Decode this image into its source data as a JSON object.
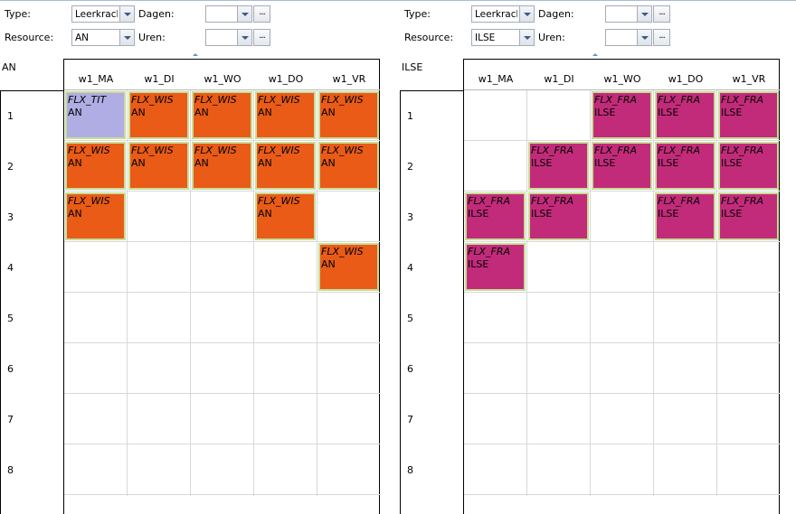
{
  "days": [
    "w1_MA",
    "w1_DI",
    "w1_WO",
    "w1_DO",
    "w1_VR"
  ],
  "hours": [
    "1",
    "2",
    "3",
    "4",
    "5",
    "6",
    "7",
    "8"
  ],
  "filters": {
    "type_label": "Type:",
    "resource_label": "Resource:",
    "dagen_label": "Dagen:",
    "uren_label": "Uren:",
    "ellipsis": "..."
  },
  "left": {
    "type_value": "Leerkracht",
    "resource_value": "AN",
    "dagen_value": "",
    "uren_value": "",
    "resource_name": "AN",
    "lessons": [
      {
        "day": 0,
        "hour": 0,
        "subject": "FLX_TIT",
        "teacher": "AN",
        "color": "#b0ade4"
      },
      {
        "day": 1,
        "hour": 0,
        "subject": "FLX_WIS",
        "teacher": "AN",
        "color": "#e95b16"
      },
      {
        "day": 2,
        "hour": 0,
        "subject": "FLX_WIS",
        "teacher": "AN",
        "color": "#e95b16"
      },
      {
        "day": 3,
        "hour": 0,
        "subject": "FLX_WIS",
        "teacher": "AN",
        "color": "#e95b16"
      },
      {
        "day": 4,
        "hour": 0,
        "subject": "FLX_WIS",
        "teacher": "AN",
        "color": "#e95b16"
      },
      {
        "day": 0,
        "hour": 1,
        "subject": "FLX_WIS",
        "teacher": "AN",
        "color": "#e95b16"
      },
      {
        "day": 1,
        "hour": 1,
        "subject": "FLX_WIS",
        "teacher": "AN",
        "color": "#e95b16"
      },
      {
        "day": 2,
        "hour": 1,
        "subject": "FLX_WIS",
        "teacher": "AN",
        "color": "#e95b16"
      },
      {
        "day": 3,
        "hour": 1,
        "subject": "FLX_WIS",
        "teacher": "AN",
        "color": "#e95b16"
      },
      {
        "day": 4,
        "hour": 1,
        "subject": "FLX_WIS",
        "teacher": "AN",
        "color": "#e95b16"
      },
      {
        "day": 0,
        "hour": 2,
        "subject": "FLX_WIS",
        "teacher": "AN",
        "color": "#e95b16"
      },
      {
        "day": 3,
        "hour": 2,
        "subject": "FLX_WIS",
        "teacher": "AN",
        "color": "#e95b16"
      },
      {
        "day": 4,
        "hour": 3,
        "subject": "FLX_WIS",
        "teacher": "AN",
        "color": "#e95b16"
      }
    ]
  },
  "right": {
    "type_value": "Leerkracht",
    "resource_value": "ILSE",
    "dagen_value": "",
    "uren_value": "",
    "resource_name": "ILSE",
    "lessons": [
      {
        "day": 2,
        "hour": 0,
        "subject": "FLX_FRA",
        "teacher": "ILSE",
        "color": "#c22b7a"
      },
      {
        "day": 3,
        "hour": 0,
        "subject": "FLX_FRA",
        "teacher": "ILSE",
        "color": "#c22b7a"
      },
      {
        "day": 4,
        "hour": 0,
        "subject": "FLX_FRA",
        "teacher": "ILSE",
        "color": "#c22b7a"
      },
      {
        "day": 1,
        "hour": 1,
        "subject": "FLX_FRA",
        "teacher": "ILSE",
        "color": "#c22b7a"
      },
      {
        "day": 2,
        "hour": 1,
        "subject": "FLX_FRA",
        "teacher": "ILSE",
        "color": "#c22b7a"
      },
      {
        "day": 3,
        "hour": 1,
        "subject": "FLX_FRA",
        "teacher": "ILSE",
        "color": "#c22b7a"
      },
      {
        "day": 4,
        "hour": 1,
        "subject": "FLX_FRA",
        "teacher": "ILSE",
        "color": "#c22b7a"
      },
      {
        "day": 0,
        "hour": 2,
        "subject": "FLX_FRA",
        "teacher": "ILSE",
        "color": "#c22b7a"
      },
      {
        "day": 1,
        "hour": 2,
        "subject": "FLX_FRA",
        "teacher": "ILSE",
        "color": "#c22b7a"
      },
      {
        "day": 3,
        "hour": 2,
        "subject": "FLX_FRA",
        "teacher": "ILSE",
        "color": "#c22b7a"
      },
      {
        "day": 4,
        "hour": 2,
        "subject": "FLX_FRA",
        "teacher": "ILSE",
        "color": "#c22b7a"
      },
      {
        "day": 0,
        "hour": 3,
        "subject": "FLX_FRA",
        "teacher": "ILSE",
        "color": "#c22b7a"
      }
    ]
  }
}
